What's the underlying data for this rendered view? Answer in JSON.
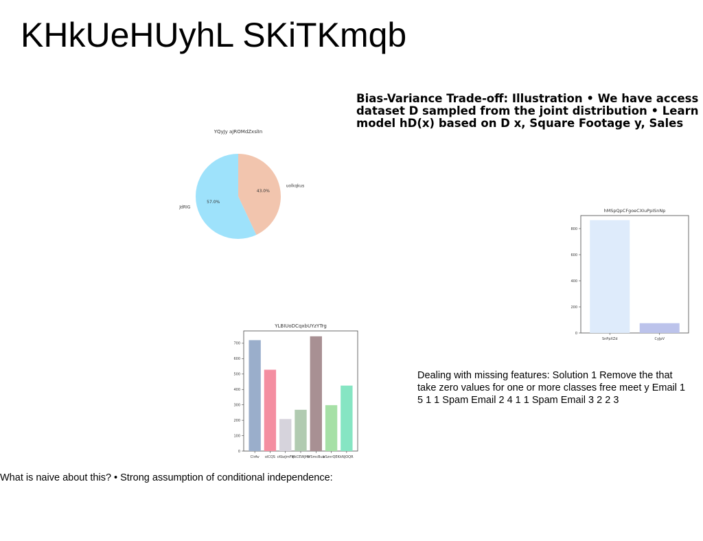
{
  "slide": {
    "title": "KHkUeHUyhL SKiTKmqb",
    "bias_text": "Bias-Variance Trade-off: Illustration • We have access dataset D sampled from the joint distribution • Learn model hD(x) based on D x, Square Footage y, Sales",
    "missing_text": "Dealing with missing features: Solution 1 Remove the that take zero values for one or more classes free meet y Email 1 5 1 1 Spam Email 2 4 1 1 Spam Email 3 2 2 3",
    "naive_text": "What is naive about this? • Strong assumption of conditional independence:"
  },
  "chart_data": [
    {
      "type": "pie",
      "title": "YQyJy aJROMdZxslIn",
      "labels": [
        "uolkqkus",
        "JdRIG"
      ],
      "values": [
        43.0,
        57.0
      ],
      "value_labels": [
        "43.0%",
        "57.0%"
      ],
      "colors": [
        "#f2c5ae",
        "#9ee2fb"
      ]
    },
    {
      "type": "bar",
      "title": "hMSpQpCFgoeCXIuPpISnNp",
      "categories": [
        "SnPpXZd",
        "CyJpV"
      ],
      "values": [
        865,
        75
      ],
      "ylim": [
        0,
        900
      ],
      "yticks": [
        0,
        200,
        400,
        600,
        800
      ],
      "colors": [
        "#deebfb",
        "#bcc3eb"
      ]
    },
    {
      "type": "bar",
      "title": "YLBIUoDCqxbUYzYTrg",
      "categories": [
        "ClrAv",
        "olCQS",
        "cKbzJmFq",
        "MkCEWJHe",
        "IYSmcBua",
        "bSznrQEK",
        "kNJOQR"
      ],
      "values": [
        720,
        528,
        208,
        268,
        745,
        298,
        425
      ],
      "ylim": [
        0,
        780
      ],
      "yticks": [
        0,
        100,
        200,
        300,
        400,
        500,
        600,
        700
      ],
      "colors": [
        "#9aaecb",
        "#f48ea1",
        "#d6d3dc",
        "#b1cbb1",
        "#a89093",
        "#a6e0a6",
        "#86e5c3"
      ]
    }
  ]
}
